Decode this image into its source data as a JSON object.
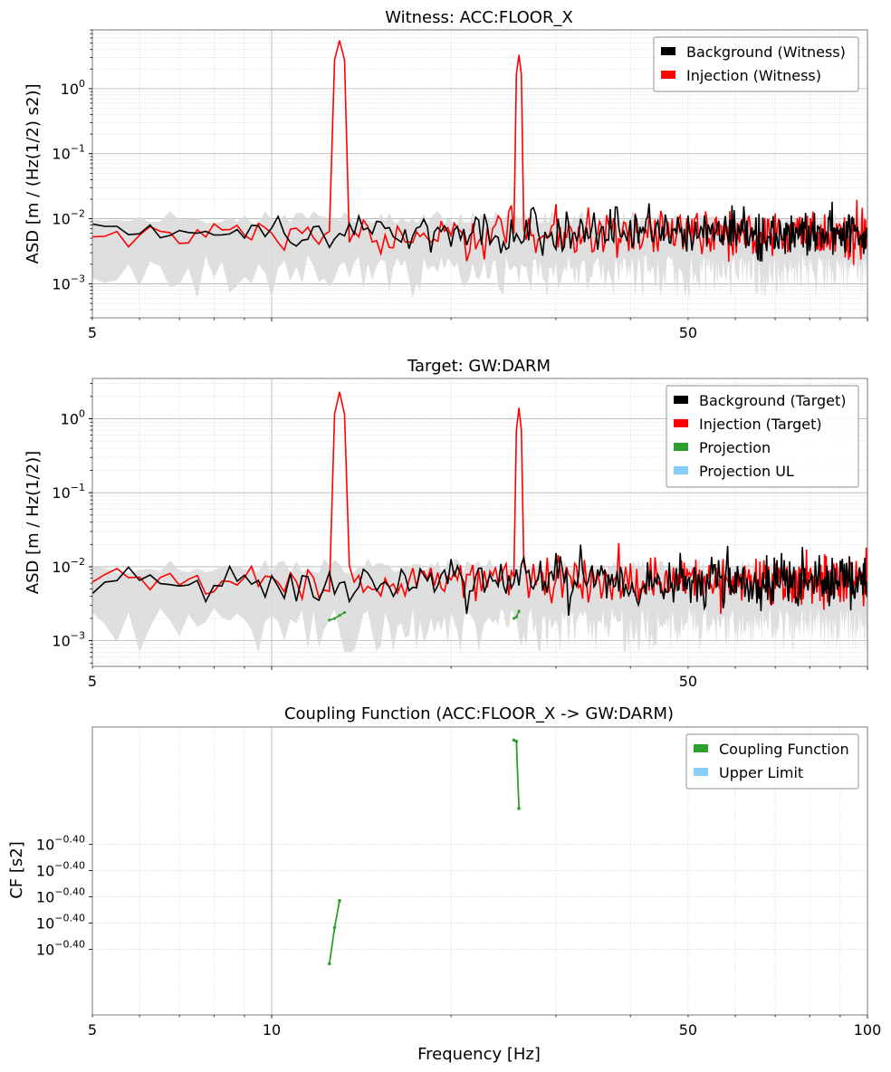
{
  "figure": {
    "xlabel": "Frequency [Hz]"
  },
  "chart_data": [
    {
      "type": "line",
      "title": "Witness: ACC:FLOOR_X",
      "ylabel": "ASD [m / (Hz(1/2) s2)]",
      "xscale": "log",
      "yscale": "log",
      "xlim": [
        5,
        100
      ],
      "ylim": [
        0.0003,
        8
      ],
      "xticks": [
        5,
        50
      ],
      "yticks": [
        0.001,
        0.01,
        0.1,
        1
      ],
      "ytick_labels": [
        {
          "base": "10",
          "exp": "−3"
        },
        {
          "base": "10",
          "exp": "−2"
        },
        {
          "base": "10",
          "exp": "−1"
        },
        {
          "base": "10",
          "exp": "0"
        }
      ],
      "grid": "both",
      "legend_position": "upper-right",
      "legend": [
        {
          "label": "Background (Witness)",
          "color": "#000000"
        },
        {
          "label": "Injection (Witness)",
          "color": "#ff0000"
        }
      ],
      "background_level": 0.0062,
      "background_band": [
        0.0006,
        0.013
      ],
      "injection_level": 0.0058,
      "peaks": [
        {
          "frequency_hz": 13.0,
          "value": 5.5
        },
        {
          "frequency_hz": 26.0,
          "value": 3.3
        }
      ],
      "series": [
        {
          "name": "Background (Witness)",
          "color": "#000000",
          "role": "background"
        },
        {
          "name": "Injection (Witness)",
          "color": "#ff0000",
          "role": "injection"
        }
      ]
    },
    {
      "type": "line",
      "title": "Target: GW:DARM",
      "ylabel": "ASD [m / Hz(1/2)]",
      "xscale": "log",
      "yscale": "log",
      "xlim": [
        5,
        100
      ],
      "ylim": [
        0.00045,
        3.5
      ],
      "xticks": [
        5,
        50
      ],
      "yticks": [
        0.001,
        0.01,
        0.1,
        1
      ],
      "ytick_labels": [
        {
          "base": "10",
          "exp": "−3"
        },
        {
          "base": "10",
          "exp": "−2"
        },
        {
          "base": "10",
          "exp": "−1"
        },
        {
          "base": "10",
          "exp": "0"
        }
      ],
      "grid": "both",
      "legend_position": "upper-right",
      "legend": [
        {
          "label": "Background (Target)",
          "color": "#000000"
        },
        {
          "label": "Injection (Target)",
          "color": "#ff0000"
        },
        {
          "label": "Projection",
          "color": "#2ca02c"
        },
        {
          "label": "Projection UL",
          "color": "#87cefa"
        }
      ],
      "background_level": 0.0062,
      "background_band": [
        0.0007,
        0.013
      ],
      "injection_level": 0.0065,
      "peaks": [
        {
          "frequency_hz": 13.0,
          "value": 2.3
        },
        {
          "frequency_hz": 26.0,
          "value": 1.4
        }
      ],
      "series": [
        {
          "name": "Background (Target)",
          "color": "#000000",
          "role": "background"
        },
        {
          "name": "Injection (Target)",
          "color": "#ff0000",
          "role": "injection"
        },
        {
          "name": "Projection",
          "color": "#2ca02c",
          "role": "projection",
          "x": [
            12.5,
            12.75,
            13.0,
            13.25,
            25.5,
            25.75,
            26.0
          ],
          "y": [
            0.0019,
            0.002,
            0.0022,
            0.0024,
            0.002,
            0.0021,
            0.0025
          ]
        }
      ]
    },
    {
      "type": "line",
      "title": "Coupling Function (ACC:FLOOR_X -> GW:DARM)",
      "ylabel": "CF [s2]",
      "xscale": "log",
      "yscale": "log",
      "xlim": [
        5,
        100
      ],
      "ylim": [
        0.3971,
        0.4015
      ],
      "xticks": [
        5,
        10,
        50,
        100
      ],
      "yticks": [
        0.3981,
        0.3985,
        0.3989,
        0.3993,
        0.3997
      ],
      "ytick_labels": [
        {
          "base": "10",
          "exp": "−0.40"
        },
        {
          "base": "10",
          "exp": "−0.40"
        },
        {
          "base": "10",
          "exp": "−0.40"
        },
        {
          "base": "10",
          "exp": "−0.40"
        },
        {
          "base": "10",
          "exp": "−0.40"
        }
      ],
      "grid": "both",
      "legend_position": "upper-right",
      "legend": [
        {
          "label": "Coupling Function",
          "color": "#2ca02c"
        },
        {
          "label": "Upper Limit",
          "color": "#87cefa"
        }
      ],
      "series": [
        {
          "name": "Coupling Function",
          "color": "#2ca02c",
          "x": [
            12.5,
            12.75,
            13.0,
            25.5,
            25.75,
            26.0
          ],
          "y": [
            0.39788,
            0.39843,
            0.39884,
            0.4013,
            0.40128,
            0.40025
          ]
        }
      ]
    }
  ]
}
